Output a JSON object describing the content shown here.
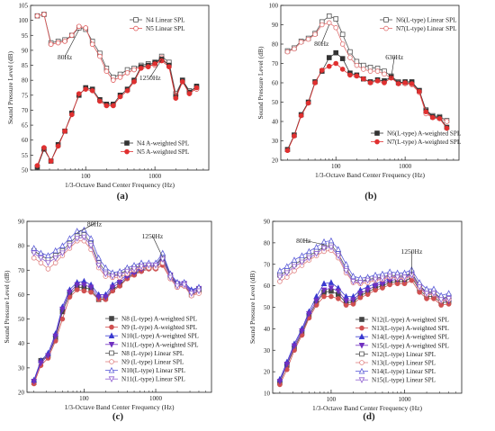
{
  "chart_data": [
    {
      "type": "line",
      "panel_label": "(a)",
      "xlabel": "1/3-Octave Band Center Frequency (Hz)",
      "ylabel": "Sound Pressure Level (dB)",
      "xscale": "log",
      "xlim": [
        16,
        6000
      ],
      "ylim": [
        50,
        105
      ],
      "yticks": [
        50,
        55,
        60,
        65,
        70,
        75,
        80,
        85,
        90,
        95,
        100,
        105
      ],
      "xticks": [
        100,
        1000
      ],
      "legend_top": "top-right",
      "legend_bottom": "bottom-right",
      "x": [
        20,
        25,
        31.5,
        40,
        50,
        63,
        80,
        100,
        125,
        160,
        200,
        250,
        315,
        400,
        500,
        630,
        800,
        1000,
        1250,
        1600,
        2000,
        2500,
        3150,
        4000
      ],
      "series": [
        {
          "name": "N4 Linear SPL",
          "group": "top",
          "marker": "square-open",
          "color": "#555555",
          "values": [
            101.5,
            102,
            92.5,
            93,
            93.5,
            95,
            97.5,
            97,
            93,
            89,
            84,
            81,
            82,
            83.5,
            84,
            85,
            85.5,
            85.5,
            88,
            86,
            75.5,
            80,
            76.5,
            77.5
          ]
        },
        {
          "name": "N5 Linear SPL",
          "group": "top",
          "marker": "circle-open",
          "color": "#e05a5a",
          "values": [
            101.5,
            102,
            92,
            92.5,
            93,
            95,
            98,
            97.5,
            92,
            88,
            83,
            80,
            81,
            82.5,
            83.5,
            84.5,
            85,
            85,
            87.5,
            85,
            75,
            79.5,
            76,
            77
          ]
        },
        {
          "name": "N4 A-weighted SPL",
          "group": "bottom",
          "marker": "square-filled",
          "color": "#333333",
          "values": [
            51,
            57,
            53,
            58.5,
            63,
            69,
            75,
            77.5,
            77,
            73.5,
            72,
            72,
            75,
            77,
            80,
            84.5,
            85,
            86,
            87,
            85,
            74.5,
            80,
            76,
            78
          ]
        },
        {
          "name": "N5 A-weighted SPL",
          "group": "bottom",
          "marker": "circle-filled",
          "color": "#e03030",
          "values": [
            51.5,
            57.5,
            53,
            58,
            63,
            68.5,
            75.5,
            77,
            76.5,
            73,
            71.5,
            71.5,
            74.5,
            76.5,
            79.5,
            84,
            84.5,
            85.5,
            86.5,
            84.5,
            74,
            79.5,
            75.5,
            77.5
          ]
        }
      ],
      "annotations": [
        {
          "text": "80Hz",
          "x": 80,
          "y": 97.5,
          "tx": 50,
          "ty": 87
        },
        {
          "text": "1250Hz",
          "x": 1250,
          "y": 87.5,
          "tx": 850,
          "ty": 80
        }
      ]
    },
    {
      "type": "line",
      "panel_label": "(b)",
      "xlabel": "1/3-Octave Band Center Frequency (Hz)",
      "ylabel": "Sound Pressure Level (dB)",
      "xscale": "log",
      "xlim": [
        16,
        6000
      ],
      "ylim": [
        20,
        100
      ],
      "yticks": [
        20,
        30,
        40,
        50,
        60,
        70,
        80,
        90,
        100
      ],
      "xticks": [
        100,
        1000
      ],
      "legend_top": "top-right",
      "legend_bottom": "bottom-right",
      "x": [
        20,
        25,
        31.5,
        40,
        50,
        63,
        80,
        100,
        125,
        160,
        200,
        250,
        315,
        400,
        500,
        630,
        800,
        1000,
        1250,
        1600,
        2000,
        2500,
        3150,
        4000
      ],
      "series": [
        {
          "name": "N6(L-type) Linear SPL",
          "group": "top",
          "marker": "square-open",
          "color": "#555555",
          "values": [
            76.5,
            78,
            81.5,
            83,
            85.5,
            91.5,
            94.5,
            93,
            85,
            76,
            71,
            69,
            68,
            67.5,
            66,
            63.5,
            60.5,
            60,
            60,
            56,
            46,
            43,
            42.5,
            40.5
          ]
        },
        {
          "name": "N7(L-type) Linear SPL",
          "group": "top",
          "marker": "circle-open",
          "color": "#e07070",
          "values": [
            76,
            77.5,
            81,
            82.5,
            85,
            90,
            91,
            88.5,
            80,
            73,
            69,
            67,
            66,
            66,
            64.5,
            62.5,
            60,
            59.5,
            59,
            55,
            44,
            42,
            41.5,
            40
          ]
        },
        {
          "name": "N6(L-type) A-weighted SPL",
          "group": "bottom",
          "marker": "square-filled",
          "color": "#333333",
          "values": [
            25.5,
            33,
            43.5,
            50,
            60.5,
            66,
            73,
            75.5,
            72.5,
            65,
            64,
            62,
            60.5,
            61.5,
            61,
            63,
            60,
            60.5,
            60.5,
            56,
            45.5,
            42.5,
            42,
            37
          ]
        },
        {
          "name": "N7(L-type) A-weighted SPL",
          "group": "bottom",
          "marker": "circle-filled",
          "color": "#e03030",
          "values": [
            25,
            32.5,
            43,
            49.5,
            60,
            66.5,
            68.5,
            70,
            67,
            64,
            63.5,
            62,
            60,
            61,
            60,
            62.5,
            59.5,
            60,
            59.5,
            55.5,
            45,
            42,
            41.5,
            36.5
          ]
        }
      ],
      "annotations": [
        {
          "text": "80Hz",
          "x": 80,
          "y": 91,
          "tx": 62,
          "ty": 79
        },
        {
          "text": "630Hz",
          "x": 630,
          "y": 63.5,
          "tx": 700,
          "ty": 72
        }
      ]
    },
    {
      "type": "line",
      "panel_label": "(c)",
      "xlabel": "1/3-Octave Band Center Frequency (Hz)",
      "ylabel": "Sound Pressure Level (dB)",
      "xscale": "log",
      "xlim": [
        16,
        6000
      ],
      "ylim": [
        20,
        90
      ],
      "yticks": [
        20,
        30,
        40,
        50,
        60,
        70,
        80,
        90
      ],
      "xticks": [
        100,
        1000
      ],
      "legend": "bottom-right",
      "x": [
        20,
        25,
        31.5,
        40,
        50,
        63,
        80,
        100,
        125,
        160,
        200,
        250,
        315,
        400,
        500,
        630,
        800,
        1000,
        1250,
        1600,
        2000,
        2500,
        3150,
        4000
      ],
      "series": [
        {
          "name": "N8  (L-type) A-weighted SPL",
          "group": "bottom",
          "marker": "square-filled",
          "color": "#444444",
          "values": [
            24,
            33,
            35,
            42,
            53,
            60,
            63,
            63,
            62,
            58,
            58.5,
            62,
            64,
            67,
            68.5,
            70,
            71,
            71,
            74,
            67.5,
            64,
            64,
            60,
            62
          ]
        },
        {
          "name": "N9  (L-type) A-weighted SPL",
          "group": "bottom",
          "marker": "circle-filled",
          "color": "#d05050",
          "values": [
            23.5,
            31,
            34,
            41,
            50,
            59,
            62,
            61.5,
            61,
            58,
            58,
            61.5,
            63.5,
            66.5,
            68,
            69.5,
            70.5,
            70.5,
            72,
            66.5,
            63,
            63.5,
            60,
            61
          ]
        },
        {
          "name": "N10(L-type) A-weighted SPL",
          "group": "bottom",
          "marker": "triangle-up-filled",
          "color": "#3a3ad0",
          "values": [
            25,
            33,
            36,
            44,
            55,
            62,
            65,
            65.5,
            64,
            60,
            60,
            64,
            66,
            68,
            69.5,
            71,
            72,
            72,
            76,
            68.5,
            65,
            65,
            62,
            63
          ]
        },
        {
          "name": "N11(L-type) A-weighted SPL",
          "group": "bottom",
          "marker": "triangle-down-filled",
          "color": "#7030c0",
          "values": [
            24.5,
            32,
            35,
            43,
            54,
            61,
            64,
            64,
            63,
            59,
            59,
            63,
            65,
            67.5,
            69,
            70.5,
            71.5,
            71.5,
            75,
            68,
            64.5,
            64.5,
            61,
            62.5
          ]
        },
        {
          "name": "N8  (L-type) Linear SPL",
          "group": "top",
          "marker": "square-open",
          "color": "#555555",
          "values": [
            78,
            76,
            74.5,
            76,
            78,
            81,
            84,
            84.5,
            81,
            73,
            69.5,
            68,
            68.5,
            70,
            71,
            72,
            72,
            72,
            75.5,
            67.5,
            64,
            64,
            60,
            62
          ]
        },
        {
          "name": "N9  (L-type) Linear SPL",
          "group": "top",
          "marker": "circle-open",
          "color": "#e08080",
          "values": [
            75,
            73,
            70.5,
            73,
            76,
            79,
            82,
            82,
            78.5,
            71,
            67.5,
            67,
            67,
            68.5,
            70,
            71,
            71,
            71,
            73,
            66.5,
            63,
            63.5,
            59.5,
            60.5
          ]
        },
        {
          "name": "N10(L-type) Linear SPL",
          "group": "top",
          "marker": "triangle-up-open",
          "color": "#5a5ad8",
          "values": [
            79,
            77,
            76,
            78,
            80,
            83,
            86,
            86.5,
            83,
            75,
            71,
            69,
            69.5,
            71,
            72,
            73,
            73,
            73,
            77,
            68.5,
            65,
            65,
            61.5,
            63
          ]
        },
        {
          "name": "N11(L-type) Linear SPL",
          "group": "top",
          "marker": "triangle-down-open",
          "color": "#9060d0",
          "values": [
            77,
            75,
            73,
            75,
            77,
            80,
            83,
            83.5,
            80,
            72,
            68.5,
            67.5,
            68,
            69.5,
            70.5,
            71.5,
            72,
            72,
            74.5,
            67,
            63.5,
            64,
            60.5,
            61.5
          ]
        }
      ],
      "annotations": [
        {
          "text": "80Hz",
          "x": 80,
          "y": 86,
          "tx": 140,
          "ty": 88
        },
        {
          "text": "1250Hz",
          "x": 1250,
          "y": 76,
          "tx": 900,
          "ty": 83
        }
      ]
    },
    {
      "type": "line",
      "panel_label": "(d)",
      "xlabel": "1/3-Octave Band Center Frequency (Hz)",
      "ylabel": "Sound Pressure Level (dB)",
      "xscale": "log",
      "xlim": [
        16,
        6000
      ],
      "ylim": [
        10,
        90
      ],
      "yticks": [
        10,
        20,
        30,
        40,
        50,
        60,
        70,
        80,
        90
      ],
      "xticks": [
        100,
        1000
      ],
      "legend": "bottom-right",
      "x": [
        20,
        25,
        31.5,
        40,
        50,
        63,
        80,
        100,
        125,
        160,
        200,
        250,
        315,
        400,
        500,
        630,
        800,
        1000,
        1250,
        1600,
        2000,
        2500,
        3150,
        4000
      ],
      "series": [
        {
          "name": "N12(L-type) A-weighted SPL",
          "group": "bottom",
          "marker": "square-filled",
          "color": "#444444",
          "values": [
            15,
            23,
            31,
            38,
            46,
            52,
            57,
            57.5,
            56,
            52,
            52.5,
            55.5,
            57,
            59,
            60,
            61.5,
            62,
            62,
            64,
            58,
            55,
            55,
            52,
            52.5
          ]
        },
        {
          "name": "N13(L-type) A-weighted SPL",
          "group": "bottom",
          "marker": "circle-filled",
          "color": "#d05050",
          "values": [
            14,
            21,
            30,
            37,
            45,
            51,
            55,
            55,
            54,
            51,
            51.5,
            54.5,
            56,
            58,
            59,
            60.5,
            61,
            61,
            62.5,
            57,
            54,
            54,
            51,
            51.5
          ]
        },
        {
          "name": "N14(L-type) A-weighted SPL",
          "group": "bottom",
          "marker": "triangle-up-filled",
          "color": "#3a3ad0",
          "values": [
            16.5,
            24.5,
            33,
            40,
            48,
            55,
            61,
            61.5,
            59,
            55,
            55,
            58,
            59.5,
            61,
            62,
            63.5,
            64,
            64,
            66,
            60,
            57,
            57,
            54,
            54
          ]
        },
        {
          "name": "N15(L-type) A-weighted SPL",
          "group": "bottom",
          "marker": "triangle-down-filled",
          "color": "#7030c0",
          "values": [
            15.5,
            23.5,
            32,
            39,
            47,
            53,
            58,
            59,
            57.5,
            53,
            53.5,
            56.5,
            58,
            60,
            61,
            62.5,
            63,
            63,
            65,
            59,
            56,
            56,
            53,
            53
          ]
        },
        {
          "name": "N12(L-type) Linear SPL",
          "group": "top",
          "marker": "square-open",
          "color": "#555555",
          "values": [
            65,
            67,
            70,
            72,
            74,
            76,
            78,
            79,
            75,
            68,
            63,
            62,
            63,
            63.5,
            64,
            65,
            64.5,
            64.5,
            66,
            60,
            57,
            57,
            54,
            55
          ]
        },
        {
          "name": "N13(L-type) Linear SPL",
          "group": "top",
          "marker": "circle-open",
          "color": "#e08080",
          "values": [
            62,
            64,
            67,
            69.5,
            72,
            74,
            76,
            76.5,
            73,
            66,
            61.5,
            61,
            61.5,
            62.5,
            63,
            64,
            63.5,
            63.5,
            64.5,
            59,
            56,
            56,
            53,
            53.5
          ]
        },
        {
          "name": "N14(L-type) Linear SPL",
          "group": "top",
          "marker": "triangle-up-open",
          "color": "#5a5ad8",
          "values": [
            67,
            69,
            72,
            74,
            76,
            78,
            80.5,
            81,
            77,
            70,
            64.5,
            63.5,
            64,
            65,
            65.5,
            66.5,
            66,
            66,
            67.5,
            61.5,
            58.5,
            58.5,
            55.5,
            56.5
          ]
        },
        {
          "name": "N15(L-type) Linear SPL",
          "group": "top",
          "marker": "triangle-down-open",
          "color": "#9060d0",
          "values": [
            64,
            66,
            69,
            71,
            73,
            75,
            77.5,
            78,
            74,
            67,
            62,
            61.5,
            62.5,
            63,
            63.5,
            64.5,
            64,
            64,
            65,
            59.5,
            56.5,
            56.5,
            53.5,
            54
          ]
        }
      ],
      "annotations": [
        {
          "text": "80Hz",
          "x": 80,
          "y": 80,
          "tx": 42,
          "ty": 80
        },
        {
          "text": "1250Hz",
          "x": 1250,
          "y": 66,
          "tx": 1250,
          "ty": 75
        }
      ]
    }
  ]
}
